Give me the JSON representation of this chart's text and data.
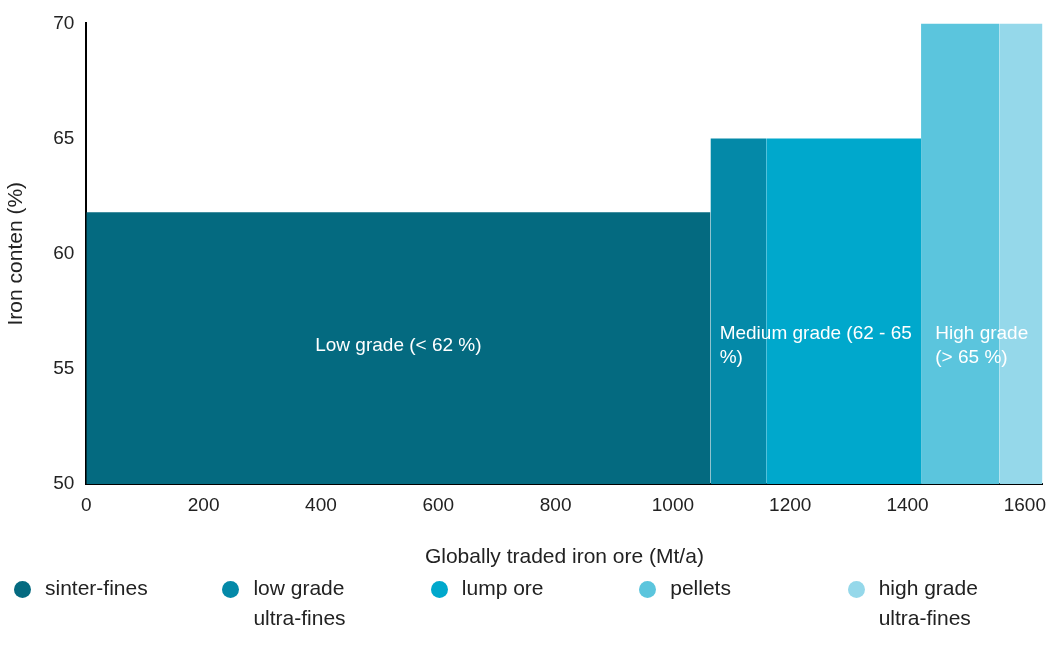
{
  "chart_data": {
    "type": "area",
    "xlabel": "Globally traded iron ore (Mt/a)",
    "ylabel": "Iron conten (%)",
    "xlim": [
      0,
      1630
    ],
    "xticks": [
      0,
      200,
      400,
      600,
      800,
      1000,
      1200,
      1400,
      1600
    ],
    "ylim": [
      50,
      70
    ],
    "yticks": [
      50,
      55,
      60,
      65,
      70
    ],
    "grid": false,
    "legend": "bottom",
    "marker": "none",
    "series": [
      {
        "name": "sinter-fines",
        "color": "#046a80",
        "x": [
          0,
          1064
        ],
        "values": [
          61.8,
          61.8
        ]
      },
      {
        "name": "low grade ultra-fines",
        "color": "#0489a8",
        "x": [
          1064,
          1159
        ],
        "values": [
          65,
          65
        ]
      },
      {
        "name": "lump ore",
        "color": "#00a8cc",
        "x": [
          1159,
          1423
        ],
        "values": [
          65,
          65
        ]
      },
      {
        "name": "pellets",
        "color": "#5bc5dd",
        "x": [
          1423,
          1557
        ],
        "values": [
          70,
          70
        ]
      },
      {
        "name": "high grade ultra-fines",
        "color": "#95d8ea",
        "x": [
          1557,
          1630
        ],
        "values": [
          70,
          70
        ]
      }
    ],
    "annotations": [
      "Low grade (< 62 %)",
      "Medium grade (62 - 65 %)",
      "High grade (> 65 %)"
    ]
  }
}
